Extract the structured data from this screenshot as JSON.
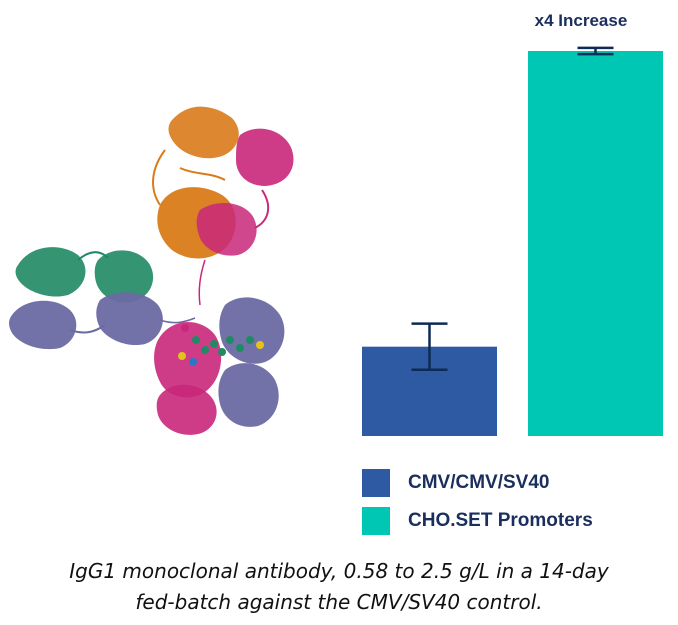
{
  "colors": {
    "control": "#2d5aa3",
    "treatment": "#00c7b4",
    "error_bar": "#0f2a55",
    "text_dark": "#1b2f5e",
    "protein_orange": "#d97b19",
    "protein_magenta": "#c9277a",
    "protein_green": "#1f8a63",
    "protein_slate": "#6b6aa3"
  },
  "illustration": {
    "icon": "igg1-antibody-structure-icon"
  },
  "chart_data": {
    "type": "bar",
    "categories": [
      "CMV/CMV/SV40",
      "CHO.SET Promoters"
    ],
    "values": [
      0.58,
      2.5
    ],
    "error": [
      0.15,
      0.02
    ],
    "ylim": [
      0,
      2.5
    ],
    "annotation": "x4 Increase",
    "title": "",
    "xlabel": "",
    "ylabel": "",
    "grid": false,
    "legend_position": "bottom"
  },
  "legend": [
    {
      "label": "CMV/CMV/SV40",
      "color": "#2d5aa3"
    },
    {
      "label": "CHO.SET Promoters",
      "color": "#00c7b4"
    }
  ],
  "caption": {
    "line1": "IgG1 monoclonal antibody, 0.58 to 2.5 g/L in a 14-day",
    "line2": "fed-batch against the CMV/SV40 control."
  }
}
